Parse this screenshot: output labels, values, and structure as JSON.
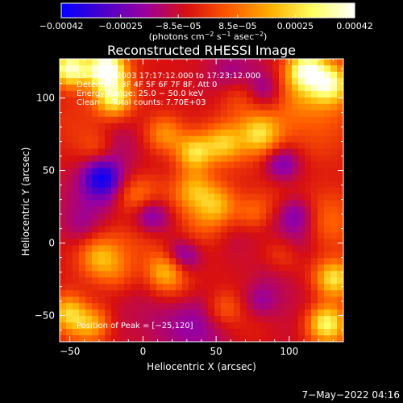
{
  "chart_data": {
    "type": "heatmap",
    "title": "Reconstructed RHESSI Image",
    "xlabel": "Heliocentric X (arcsec)",
    "ylabel": "Heliocentric Y (arcsec)",
    "xlim": [
      -57,
      137
    ],
    "ylim": [
      -68,
      127
    ],
    "x_ticks": [
      -50,
      0,
      50,
      100
    ],
    "y_ticks": [
      -50,
      0,
      50,
      100
    ],
    "x_tick_labels": [
      "−50",
      "0",
      "50",
      "100"
    ],
    "y_tick_labels": [
      "−50",
      "0",
      "50",
      "100"
    ],
    "colorbar": {
      "range": [
        -0.00042,
        0.00042
      ],
      "ticks": [
        -0.00042,
        -0.00025,
        -8.5e-05,
        8.5e-05,
        0.00025,
        0.00042
      ],
      "tick_labels": [
        "−0.00042",
        "−0.00025",
        "−8.5e−05",
        "8.5e−05",
        "0.00025",
        "0.00042"
      ],
      "unit_parts": [
        "(photons cm",
        "−2",
        " s",
        "−1",
        " asec",
        "−2",
        ")"
      ],
      "stops": [
        "#0000ff",
        "#4a00cc",
        "#9a00a0",
        "#d81010",
        "#ff5a00",
        "#ffb000",
        "#ffff60",
        "#ffffff"
      ]
    },
    "annotations": [
      "19−Nov−2003 17:17:12.000 to 17:23:12.000",
      "Detectors: 3F 4F 5F 6F 7F 8F, Att 0",
      "Energy Range: 25.0 − 50.0 keV",
      "Clean     Total counts: 7.70E+03"
    ],
    "peak_label": "Position of Peak = [−25,120]",
    "peak_position": [
      -25,
      120
    ],
    "grid": false,
    "features": [
      {
        "x": -50,
        "y": 120,
        "value": 0.00045
      },
      {
        "x": -25,
        "y": 120,
        "value": 0.0005
      },
      {
        "x": -20,
        "y": 100,
        "value": 0.00035
      },
      {
        "x": 35,
        "y": 62,
        "value": 0.00032
      },
      {
        "x": 15,
        "y": 75,
        "value": 0.0002
      },
      {
        "x": 55,
        "y": 68,
        "value": 0.00022
      },
      {
        "x": 80,
        "y": 75,
        "value": 0.0002
      },
      {
        "x": 112,
        "y": 120,
        "value": 0.00035
      },
      {
        "x": 128,
        "y": 110,
        "value": 0.0003
      },
      {
        "x": 130,
        "y": -25,
        "value": 0.0003
      },
      {
        "x": 125,
        "y": -55,
        "value": 0.00035
      },
      {
        "x": -50,
        "y": -48,
        "value": 0.00032
      },
      {
        "x": -35,
        "y": -55,
        "value": 0.00025
      },
      {
        "x": 15,
        "y": -20,
        "value": 0.00022
      },
      {
        "x": 35,
        "y": 38,
        "value": 0.00018
      },
      {
        "x": -5,
        "y": 32,
        "value": 0.00015
      },
      {
        "x": 75,
        "y": 20,
        "value": 0.00017
      },
      {
        "x": 95,
        "y": -10,
        "value": 0.00015
      },
      {
        "x": -30,
        "y": -10,
        "value": 0.00017
      },
      {
        "x": 55,
        "y": -45,
        "value": 0.00015
      },
      {
        "x": -28,
        "y": 45,
        "value": -0.00028
      },
      {
        "x": 5,
        "y": 20,
        "value": -0.0002
      },
      {
        "x": 95,
        "y": 55,
        "value": -0.0002
      },
      {
        "x": 30,
        "y": -10,
        "value": -0.00018
      },
      {
        "x": 105,
        "y": 20,
        "value": -0.00015
      },
      {
        "x": 80,
        "y": -40,
        "value": -0.00012
      }
    ]
  },
  "timestamp": "7−May−2022 04:16"
}
